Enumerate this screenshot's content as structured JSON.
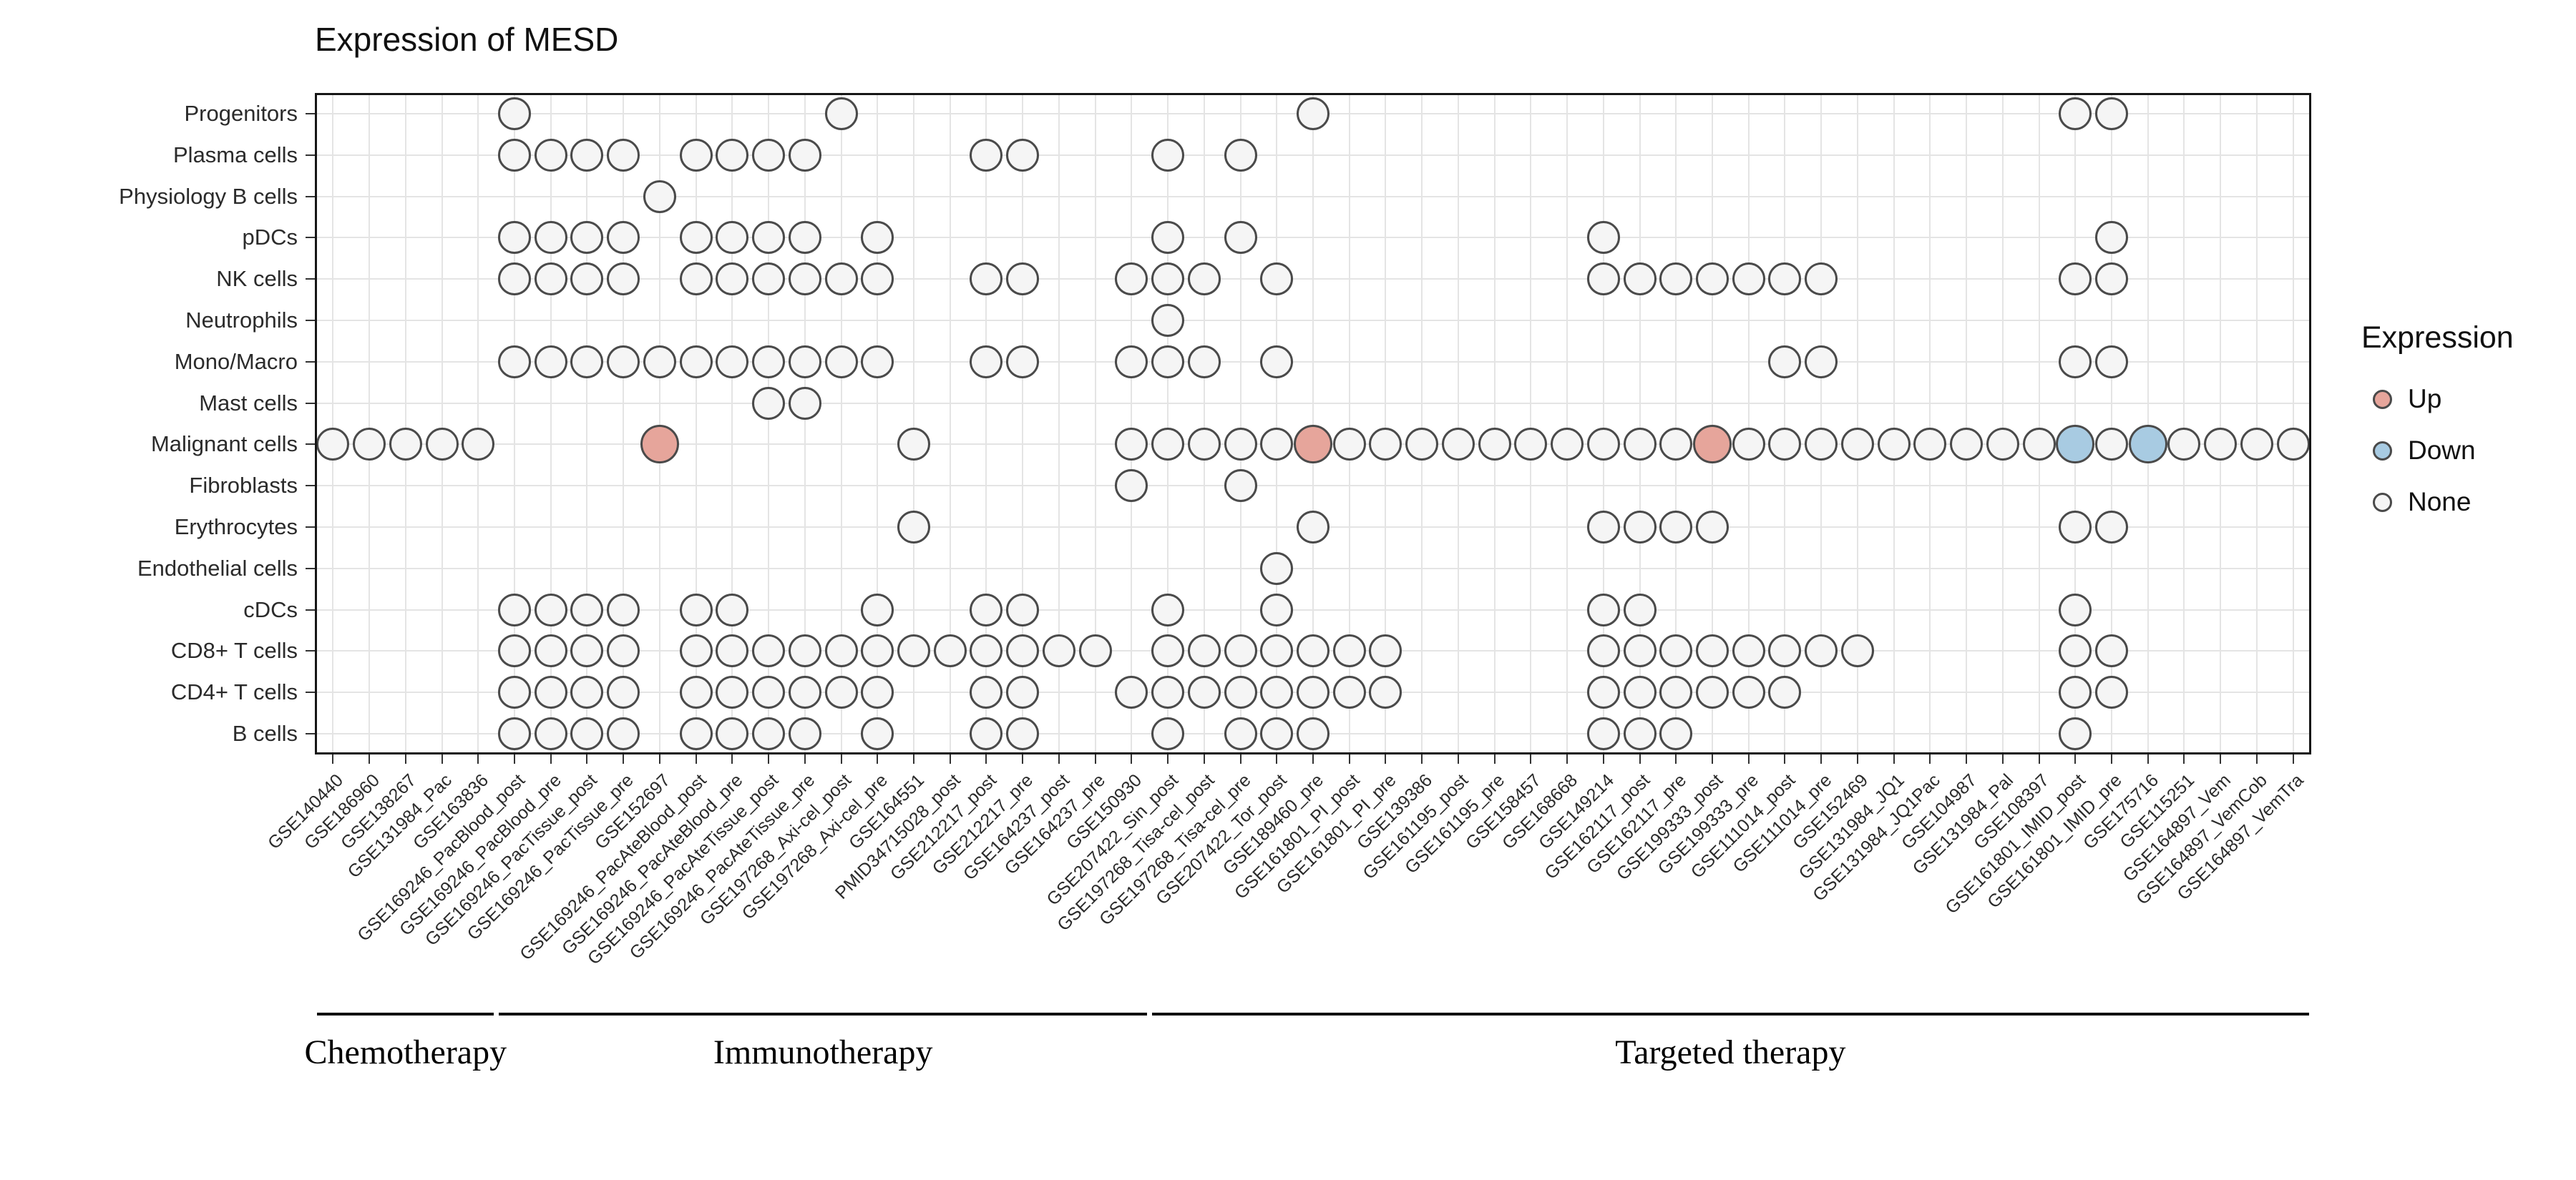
{
  "title": "Expression of MESD",
  "legend": {
    "title": "Expression",
    "items": [
      {
        "label": "Up",
        "state": "up"
      },
      {
        "label": "Down",
        "state": "down"
      },
      {
        "label": "None",
        "state": "none"
      }
    ]
  },
  "colors": {
    "up": "#e6a59b",
    "down": "#a8cbe2",
    "none": "#f5f5f5",
    "stroke": "#4a4a4a"
  },
  "chart_data": {
    "type": "heatmap",
    "mark": "circle",
    "title": "Expression of MESD",
    "legend_position": "right",
    "rows": [
      "Progenitors",
      "Plasma cells",
      "Physiology B cells",
      "pDCs",
      "NK cells",
      "Neutrophils",
      "Mono/Macro",
      "Mast cells",
      "Malignant cells",
      "Fibroblasts",
      "Erythrocytes",
      "Endothelial cells",
      "cDCs",
      "CD8+ T cells",
      "CD4+ T cells",
      "B cells"
    ],
    "columns": [
      "GSE140440",
      "GSE186960",
      "GSE138267",
      "GSE131984_Pac",
      "GSE163836",
      "GSE169246_PacBlood_post",
      "GSE169246_PacBlood_pre",
      "GSE169246_PacTissue_post",
      "GSE169246_PacTissue_pre",
      "GSE152697",
      "GSE169246_PacAteBlood_post",
      "GSE169246_PacAteBlood_pre",
      "GSE169246_PacAteTissue_post",
      "GSE169246_PacAteTissue_pre",
      "GSE197268_Axi-cel_post",
      "GSE197268_Axi-cel_pre",
      "GSE164551",
      "PMID34715028_post",
      "GSE212217_post",
      "GSE212217_pre",
      "GSE164237_post",
      "GSE164237_pre",
      "GSE150930",
      "GSE207422_Sin_post",
      "GSE197268_Tisa-cel_post",
      "GSE197268_Tisa-cel_pre",
      "GSE207422_Tor_post",
      "GSE189460_pre",
      "GSE161801_PI_post",
      "GSE161801_PI_pre",
      "GSE139386",
      "GSE161195_post",
      "GSE161195_pre",
      "GSE158457",
      "GSE168668",
      "GSE149214",
      "GSE162117_post",
      "GSE162117_pre",
      "GSE199333_post",
      "GSE199333_pre",
      "GSE111014_post",
      "GSE111014_pre",
      "GSE152469",
      "GSE131984_JQ1",
      "GSE131984_JQ1Pac",
      "GSE104987",
      "GSE131984_Pal",
      "GSE108397",
      "GSE161801_IMID_post",
      "GSE161801_IMID_pre",
      "GSE175716",
      "GSE115251",
      "GSE164897_Vem",
      "GSE164897_VemCob",
      "GSE164897_VemTra"
    ],
    "x_groups": [
      {
        "label": "Chemotherapy",
        "cols": [
          1,
          5
        ]
      },
      {
        "label": "Immunotherapy",
        "cols": [
          6,
          23
        ]
      },
      {
        "label": "Targeted therapy",
        "cols": [
          24,
          55
        ]
      }
    ],
    "cells": [
      {
        "row": "Progenitors",
        "none": [
          6,
          15,
          28,
          49,
          50
        ]
      },
      {
        "row": "Plasma cells",
        "none": [
          6,
          7,
          8,
          9,
          11,
          12,
          13,
          14,
          19,
          20,
          24,
          26
        ]
      },
      {
        "row": "Physiology B cells",
        "none": [
          10
        ]
      },
      {
        "row": "pDCs",
        "none": [
          6,
          7,
          8,
          9,
          11,
          12,
          13,
          14,
          16,
          24,
          26,
          36,
          50
        ]
      },
      {
        "row": "NK cells",
        "none": [
          6,
          7,
          8,
          9,
          11,
          12,
          13,
          14,
          15,
          16,
          19,
          20,
          23,
          24,
          25,
          27,
          36,
          37,
          38,
          39,
          40,
          41,
          42,
          49,
          50
        ]
      },
      {
        "row": "Neutrophils",
        "none": [
          24
        ]
      },
      {
        "row": "Mono/Macro",
        "none": [
          6,
          7,
          8,
          9,
          10,
          11,
          12,
          13,
          14,
          15,
          16,
          19,
          20,
          23,
          24,
          25,
          27,
          41,
          42,
          49,
          50
        ]
      },
      {
        "row": "Mast cells",
        "none": [
          13,
          14
        ]
      },
      {
        "row": "Malignant cells",
        "none": [
          1,
          2,
          3,
          4,
          5,
          17,
          23,
          24,
          25,
          26,
          27,
          29,
          30,
          31,
          32,
          33,
          34,
          35,
          36,
          37,
          38,
          40,
          41,
          42,
          43,
          44,
          45,
          46,
          47,
          48,
          50,
          52,
          53,
          54,
          55
        ],
        "up": [
          10,
          28,
          39
        ],
        "down": [
          49,
          51
        ]
      },
      {
        "row": "Fibroblasts",
        "none": [
          23,
          26
        ]
      },
      {
        "row": "Erythrocytes",
        "none": [
          17,
          28,
          36,
          37,
          38,
          39,
          49,
          50
        ]
      },
      {
        "row": "Endothelial cells",
        "none": [
          27
        ]
      },
      {
        "row": "cDCs",
        "none": [
          6,
          7,
          8,
          9,
          11,
          12,
          16,
          19,
          20,
          24,
          27,
          36,
          37,
          49
        ]
      },
      {
        "row": "CD8+ T cells",
        "none": [
          6,
          7,
          8,
          9,
          11,
          12,
          13,
          14,
          15,
          16,
          17,
          18,
          19,
          20,
          21,
          22,
          24,
          25,
          26,
          27,
          28,
          29,
          30,
          36,
          37,
          38,
          39,
          40,
          41,
          42,
          43,
          49,
          50
        ]
      },
      {
        "row": "CD4+ T cells",
        "none": [
          6,
          7,
          8,
          9,
          11,
          12,
          13,
          14,
          15,
          16,
          19,
          20,
          23,
          24,
          25,
          26,
          27,
          28,
          29,
          30,
          36,
          37,
          38,
          39,
          40,
          41,
          49,
          50
        ]
      },
      {
        "row": "B cells",
        "none": [
          6,
          7,
          8,
          9,
          11,
          12,
          13,
          14,
          16,
          19,
          20,
          24,
          26,
          27,
          28,
          36,
          37,
          38,
          49
        ]
      }
    ]
  }
}
